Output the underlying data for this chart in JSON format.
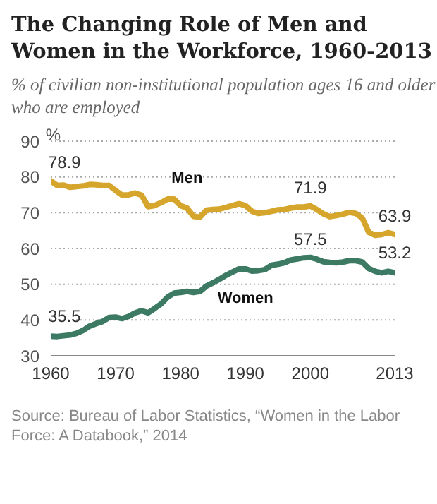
{
  "chart_data": {
    "type": "line",
    "title": "The Changing Role of Men and Women in the Workforce, 1960-2013",
    "subtitle": "% of civilian non-institutional population ages 16 and older who are employed",
    "ylabel": "%",
    "x": [
      1960,
      1961,
      1962,
      1963,
      1964,
      1965,
      1966,
      1967,
      1968,
      1969,
      1970,
      1971,
      1972,
      1973,
      1974,
      1975,
      1976,
      1977,
      1978,
      1979,
      1980,
      1981,
      1982,
      1983,
      1984,
      1985,
      1986,
      1987,
      1988,
      1989,
      1990,
      1991,
      1992,
      1993,
      1994,
      1995,
      1996,
      1997,
      1998,
      1999,
      2000,
      2001,
      2002,
      2003,
      2004,
      2005,
      2006,
      2007,
      2008,
      2009,
      2010,
      2011,
      2012,
      2013
    ],
    "series": [
      {
        "name": "Men",
        "color": "#d5a62b",
        "values": [
          78.9,
          77.6,
          77.7,
          77.1,
          77.3,
          77.5,
          77.9,
          77.8,
          77.6,
          77.6,
          76.2,
          74.9,
          75.0,
          75.5,
          74.9,
          71.7,
          72.0,
          72.8,
          73.8,
          73.8,
          72.0,
          71.3,
          69.0,
          68.8,
          70.7,
          70.9,
          71.0,
          71.5,
          72.0,
          72.5,
          72.0,
          70.4,
          69.8,
          70.0,
          70.4,
          70.8,
          70.9,
          71.3,
          71.6,
          71.6,
          71.9,
          70.9,
          69.7,
          68.9,
          69.2,
          69.6,
          70.1,
          69.8,
          68.5,
          64.5,
          63.7,
          63.9,
          64.4,
          63.9
        ],
        "value_labels": [
          "78.9",
          null,
          null,
          null,
          null,
          null,
          null,
          null,
          null,
          null,
          null,
          null,
          null,
          null,
          null,
          null,
          null,
          null,
          null,
          null,
          null,
          null,
          null,
          null,
          null,
          null,
          null,
          null,
          null,
          null,
          null,
          null,
          null,
          null,
          null,
          null,
          null,
          null,
          null,
          null,
          "71.9",
          null,
          null,
          null,
          null,
          null,
          null,
          null,
          null,
          null,
          null,
          null,
          null,
          "63.9"
        ]
      },
      {
        "name": "Women",
        "color": "#3d7a63",
        "values": [
          35.5,
          35.4,
          35.6,
          35.8,
          36.3,
          37.1,
          38.3,
          39.0,
          39.6,
          40.7,
          40.8,
          40.4,
          41.0,
          42.0,
          42.6,
          42.0,
          43.2,
          44.5,
          46.4,
          47.5,
          47.7,
          48.0,
          47.7,
          48.0,
          49.5,
          50.4,
          51.4,
          52.5,
          53.4,
          54.3,
          54.3,
          53.7,
          53.8,
          54.1,
          55.3,
          55.6,
          56.0,
          56.8,
          57.1,
          57.4,
          57.5,
          57.0,
          56.3,
          56.1,
          56.0,
          56.2,
          56.6,
          56.6,
          56.2,
          54.4,
          53.6,
          53.2,
          53.6,
          53.2
        ],
        "value_labels": [
          "35.5",
          null,
          null,
          null,
          null,
          null,
          null,
          null,
          null,
          null,
          null,
          null,
          null,
          null,
          null,
          null,
          null,
          null,
          null,
          null,
          null,
          null,
          null,
          null,
          null,
          null,
          null,
          null,
          null,
          null,
          null,
          null,
          null,
          null,
          null,
          null,
          null,
          null,
          null,
          null,
          "57.5",
          null,
          null,
          null,
          null,
          null,
          null,
          null,
          null,
          null,
          null,
          null,
          null,
          "53.2"
        ]
      }
    ],
    "xlim": [
      1960,
      2013
    ],
    "xticks": [
      1960,
      1970,
      1980,
      1990,
      2000,
      2013
    ],
    "ylim": [
      30,
      90
    ],
    "yticks": [
      30,
      40,
      50,
      60,
      70,
      80,
      90
    ],
    "grid": "y",
    "legend": false,
    "marker": "none",
    "line_style": "solid",
    "annotations": [
      "Source: Bureau of Labor Statistics, “Women in the Labor Force: A Databook,” 2014"
    ]
  }
}
